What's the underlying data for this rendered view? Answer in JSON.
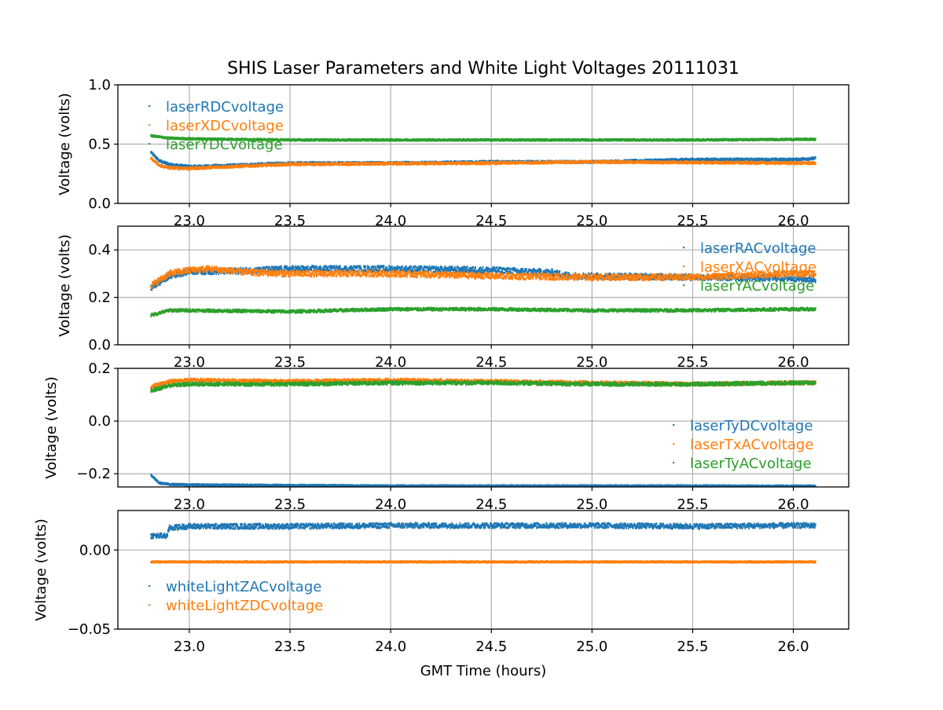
{
  "chart_data": {
    "title": "SHIS Laser Parameters and White Light Voltages 20111031",
    "xlabel": "GMT Time (hours)",
    "x_range": [
      22.81,
      26.11
    ],
    "xlim": [
      22.645,
      26.275
    ],
    "x_ticks": [
      23.0,
      23.5,
      24.0,
      24.5,
      25.0,
      25.5,
      26.0
    ],
    "x_tick_labels": [
      "23.0",
      "23.5",
      "24.0",
      "24.5",
      "25.0",
      "25.5",
      "26.0"
    ],
    "colors": {
      "blue": "#1f77b4",
      "orange": "#ff7f0e",
      "green": "#2ca02c",
      "grid": "#b0b0b0"
    },
    "panels": [
      {
        "type": "scatter",
        "ylabel": "Voltage (volts)",
        "ylim": [
          0.0,
          1.0
        ],
        "y_ticks": [
          0.0,
          0.5,
          1.0
        ],
        "y_tick_labels": [
          "0.0",
          "0.5",
          "1.0"
        ],
        "legend_position": "upper-left",
        "series": [
          {
            "name": "laserRDCvoltage",
            "color": "#1f77b4",
            "x": [
              22.81,
              22.85,
              22.9,
              23.0,
              23.2,
              23.5,
              24.0,
              24.5,
              25.0,
              25.5,
              26.0,
              26.11
            ],
            "y": [
              0.43,
              0.36,
              0.33,
              0.31,
              0.32,
              0.34,
              0.34,
              0.35,
              0.35,
              0.37,
              0.37,
              0.38
            ],
            "noise": 0.008
          },
          {
            "name": "laserXDCvoltage",
            "color": "#ff7f0e",
            "x": [
              22.81,
              22.85,
              22.9,
              23.0,
              23.2,
              23.5,
              24.0,
              24.5,
              25.0,
              25.5,
              26.0,
              26.11
            ],
            "y": [
              0.38,
              0.32,
              0.3,
              0.295,
              0.31,
              0.33,
              0.335,
              0.34,
              0.35,
              0.345,
              0.34,
              0.34
            ],
            "noise": 0.008
          },
          {
            "name": "laserYDCvoltage",
            "color": "#2ca02c",
            "x": [
              22.81,
              22.9,
              23.0,
              23.5,
              24.0,
              24.5,
              25.0,
              25.5,
              26.0,
              26.11
            ],
            "y": [
              0.57,
              0.55,
              0.545,
              0.535,
              0.535,
              0.535,
              0.535,
              0.535,
              0.54,
              0.54
            ],
            "noise": 0.005
          }
        ]
      },
      {
        "type": "scatter",
        "ylabel": "Voltage (volts)",
        "ylim": [
          0.0,
          0.5
        ],
        "y_ticks": [
          0.0,
          0.2,
          0.4
        ],
        "y_tick_labels": [
          "0.0",
          "0.2",
          "0.4"
        ],
        "legend_position": "upper-right",
        "series": [
          {
            "name": "laserRACvoltage",
            "color": "#1f77b4",
            "x": [
              22.81,
              22.9,
              23.0,
              23.2,
              23.5,
              24.0,
              24.5,
              24.8,
              24.9,
              25.0,
              25.5,
              26.0,
              26.11
            ],
            "y": [
              0.24,
              0.29,
              0.31,
              0.31,
              0.32,
              0.32,
              0.315,
              0.305,
              0.29,
              0.29,
              0.285,
              0.28,
              0.275
            ],
            "noise": 0.012
          },
          {
            "name": "laserXACvoltage",
            "color": "#ff7f0e",
            "x": [
              22.81,
              22.9,
              23.0,
              23.1,
              23.3,
              23.5,
              24.0,
              24.5,
              25.0,
              25.5,
              26.0,
              26.11
            ],
            "y": [
              0.25,
              0.3,
              0.315,
              0.32,
              0.305,
              0.3,
              0.3,
              0.29,
              0.285,
              0.285,
              0.3,
              0.3
            ],
            "noise": 0.012
          },
          {
            "name": "laserYACvoltage",
            "color": "#2ca02c",
            "x": [
              22.81,
              22.9,
              23.0,
              23.5,
              24.0,
              24.5,
              25.0,
              25.5,
              26.0,
              26.11
            ],
            "y": [
              0.125,
              0.145,
              0.145,
              0.14,
              0.15,
              0.15,
              0.145,
              0.145,
              0.15,
              0.15
            ],
            "noise": 0.005
          }
        ]
      },
      {
        "type": "scatter",
        "ylabel": "Voltage (volts)",
        "ylim": [
          -0.25,
          0.2
        ],
        "y_ticks": [
          -0.2,
          0.0,
          0.2
        ],
        "y_tick_labels": [
          "−0.2",
          "0.0",
          "0.2"
        ],
        "legend_position": "center-right",
        "series": [
          {
            "name": "laserTyDCvoltage",
            "color": "#1f77b4",
            "x": [
              22.81,
              22.85,
              22.9,
              23.0,
              23.5,
              24.0,
              24.5,
              25.0,
              25.5,
              26.0,
              26.11
            ],
            "y": [
              -0.205,
              -0.235,
              -0.24,
              -0.242,
              -0.244,
              -0.246,
              -0.246,
              -0.246,
              -0.246,
              -0.247,
              -0.247
            ],
            "noise": 0.002
          },
          {
            "name": "laserTxACvoltage",
            "color": "#ff7f0e",
            "x": [
              22.81,
              22.9,
              23.0,
              23.5,
              24.0,
              24.5,
              25.0,
              25.5,
              26.0,
              26.11
            ],
            "y": [
              0.13,
              0.15,
              0.155,
              0.15,
              0.155,
              0.15,
              0.145,
              0.14,
              0.145,
              0.145
            ],
            "noise": 0.006
          },
          {
            "name": "laserTyACvoltage",
            "color": "#2ca02c",
            "x": [
              22.81,
              22.9,
              23.0,
              23.5,
              24.0,
              24.5,
              25.0,
              25.5,
              26.0,
              26.11
            ],
            "y": [
              0.115,
              0.135,
              0.14,
              0.14,
              0.145,
              0.145,
              0.14,
              0.14,
              0.145,
              0.145
            ],
            "noise": 0.006
          }
        ]
      },
      {
        "type": "scatter",
        "ylabel": "Voltage (volts)",
        "xlabel": "GMT Time (hours)",
        "ylim": [
          -0.05,
          0.025
        ],
        "y_ticks": [
          -0.05,
          0.0
        ],
        "y_tick_labels": [
          "−0.05",
          "0.00"
        ],
        "legend_position": "center-left",
        "series": [
          {
            "name": "whiteLightZACvoltage",
            "color": "#1f77b4",
            "x": [
              22.81,
              22.89,
              22.9,
              23.0,
              23.5,
              24.0,
              24.5,
              25.0,
              25.5,
              26.0,
              26.11
            ],
            "y": [
              0.009,
              0.009,
              0.014,
              0.015,
              0.015,
              0.0155,
              0.0155,
              0.0155,
              0.015,
              0.0155,
              0.0155
            ],
            "noise": 0.0015
          },
          {
            "name": "whiteLightZDCvoltage",
            "color": "#ff7f0e",
            "x": [
              22.81,
              23.0,
              24.0,
              25.0,
              26.0,
              26.11
            ],
            "y": [
              -0.0075,
              -0.0075,
              -0.0075,
              -0.0075,
              -0.0075,
              -0.0075
            ],
            "noise": 0.0003
          }
        ]
      }
    ]
  }
}
